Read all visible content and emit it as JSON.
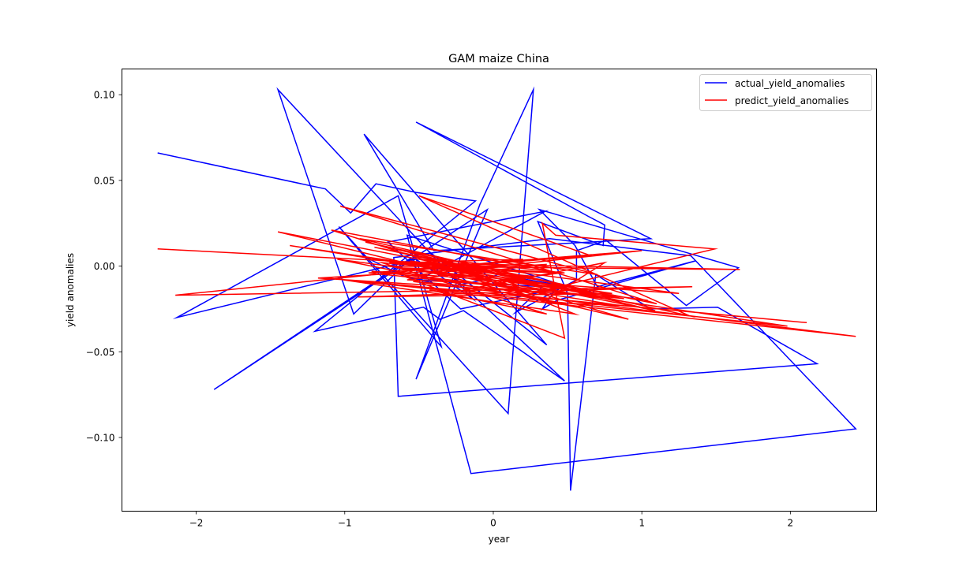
{
  "chart_data": {
    "type": "line",
    "title": "GAM maize China",
    "xlabel": "year",
    "ylabel": "yield anomalies",
    "xlim": [
      -2.5,
      2.58
    ],
    "ylim": [
      -0.143,
      0.115
    ],
    "xticks": [
      -2,
      -1,
      0,
      1,
      2
    ],
    "xtick_labels": [
      "−2",
      "−1",
      "0",
      "1",
      "2"
    ],
    "yticks": [
      0.1,
      0.05,
      0.0,
      -0.05,
      -0.1
    ],
    "ytick_labels": [
      "0.10",
      "0.05",
      "0.00",
      "−0.05",
      "−0.10"
    ],
    "legend_position": "top-right",
    "grid": false,
    "series": [
      {
        "name": "actual_yield_anomalies",
        "color": "#0000ff",
        "x": [
          -2.26,
          -1.13,
          -0.96,
          -0.79,
          -0.52,
          -0.12,
          -1.2,
          -0.47,
          -0.36,
          -0.2,
          0.48,
          -0.31,
          -1.45,
          -0.94,
          -0.55,
          -1.88,
          -0.04,
          -0.52,
          -0.09,
          0.27,
          0.1,
          -1.04,
          -0.35,
          -0.64,
          -2.13,
          -0.52,
          -0.14,
          -0.44,
          0.36,
          -0.87,
          -0.4,
          1.06,
          -0.52,
          0.64,
          0.75,
          0.74,
          0.3,
          0.5,
          0.52,
          0.69,
          1.06,
          1.51,
          2.18,
          -0.64,
          -0.67,
          0.38,
          1.33,
          2.44,
          -0.15,
          -0.58,
          0.5,
          -0.22,
          -0.71,
          0.35,
          -0.5,
          0.33,
          0.15,
          0.56,
          0.56,
          0.76,
          1.3,
          1.65,
          0.31,
          0.55,
          0.7,
          1.36,
          0.43,
          0.33,
          0.44,
          0.03,
          -0.06,
          -0.3,
          -0.6,
          -0.88
        ],
        "y": [
          0.066,
          0.045,
          0.031,
          0.048,
          0.043,
          0.038,
          -0.038,
          -0.024,
          -0.031,
          -0.026,
          -0.067,
          -0.003,
          0.103,
          -0.028,
          0.005,
          -0.072,
          0.033,
          -0.066,
          0.036,
          0.103,
          -0.086,
          0.023,
          -0.047,
          0.041,
          -0.03,
          0.004,
          -0.019,
          0.009,
          -0.046,
          0.077,
          0.009,
          0.016,
          0.084,
          0.029,
          0.024,
          0.012,
          0.026,
          -0.016,
          -0.131,
          -0.005,
          -0.025,
          -0.024,
          -0.057,
          -0.076,
          0.005,
          0.016,
          0.006,
          -0.095,
          -0.121,
          0.018,
          -0.012,
          -0.025,
          0.014,
          0.032,
          -0.008,
          -0.012,
          -0.027,
          -0.008,
          0.009,
          0.015,
          -0.023,
          -0.001,
          0.033,
          0.012,
          -0.012,
          0.003,
          -0.02,
          -0.025,
          -0.011,
          -0.005,
          -0.008,
          -0.012,
          -0.006,
          0.006
        ]
      },
      {
        "name": "predict_yield_anomalies",
        "color": "#ff0000",
        "x": [
          -2.26,
          0.2,
          -0.7,
          0.46,
          -0.3,
          1.0,
          -0.6,
          0.48,
          0.33,
          0.42,
          1.49,
          0.25,
          -1.45,
          0.8,
          -0.9,
          0.7,
          -1.03,
          1.1,
          -0.8,
          1.32,
          -0.5,
          0.66,
          -0.84,
          0.88,
          -1.37,
          0.8,
          -0.91,
          1.34,
          -2.14,
          0.2,
          -0.6,
          1.66,
          -0.71,
          1.98,
          -1.12,
          2.11,
          -1.01,
          0.55,
          -0.22,
          0.73,
          -0.54,
          2.44,
          -0.43,
          0.36,
          -0.75,
          0.28,
          -0.2,
          0.75,
          0.33,
          0.85,
          -0.09,
          0.45,
          -1.09,
          0.28,
          -0.48,
          1.25,
          -0.82,
          0.64,
          -1.18,
          0.36,
          -0.58,
          0.16,
          -0.36,
          0.48,
          -0.65,
          0.54,
          -0.86,
          1.09,
          -0.56,
          0.38,
          -0.28,
          0.91,
          -0.46,
          0.56,
          -1.05,
          1.04
        ],
        "y": [
          0.01,
          -0.001,
          0.002,
          -0.004,
          0.0,
          0.009,
          -0.006,
          -0.042,
          0.025,
          0.018,
          0.01,
          -0.016,
          0.02,
          -0.018,
          0.016,
          -0.005,
          0.035,
          -0.022,
          0.011,
          -0.029,
          0.041,
          0.006,
          -0.004,
          -0.019,
          0.012,
          -0.016,
          -0.018,
          -0.012,
          -0.017,
          0.004,
          0.002,
          -0.002,
          0.0,
          -0.035,
          -0.007,
          -0.033,
          -0.008,
          -0.028,
          -0.002,
          -0.018,
          -0.009,
          -0.041,
          -0.014,
          -0.028,
          0.002,
          -0.006,
          -0.014,
          0.002,
          -0.021,
          -0.023,
          -0.01,
          -0.004,
          0.021,
          -0.017,
          0.004,
          -0.016,
          -0.003,
          -0.017,
          -0.007,
          0.001,
          -0.008,
          -0.011,
          0.004,
          -0.004,
          -0.001,
          -0.012,
          0.014,
          -0.026,
          0.003,
          -0.009,
          -0.001,
          -0.031,
          -0.003,
          -0.024,
          0.004,
          -0.02
        ]
      }
    ]
  }
}
